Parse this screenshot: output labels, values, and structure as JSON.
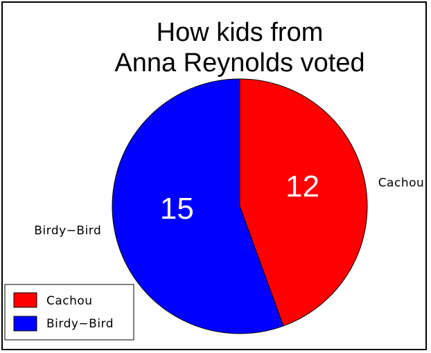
{
  "chart_data": {
    "type": "pie",
    "title": [
      "How kids from",
      "Anna Reynolds voted"
    ],
    "slices": [
      {
        "label": "Cachou",
        "value": 12,
        "color": "#ff0000"
      },
      {
        "label": "Birdy−Bird",
        "value": 15,
        "color": "#0000ff"
      }
    ],
    "start_angle_deg": 0,
    "direction": "clockwise",
    "legend": {
      "position": "bottom-left",
      "entries": [
        "Cachou",
        "Birdy−Bird"
      ]
    }
  }
}
